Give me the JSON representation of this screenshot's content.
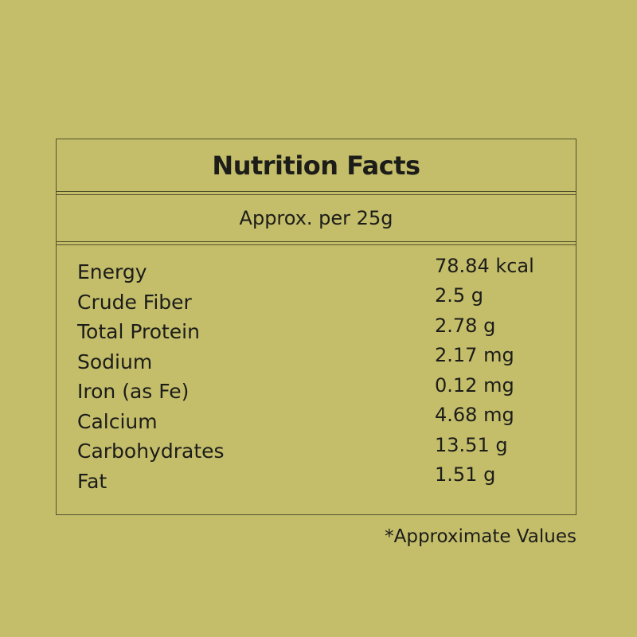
{
  "colors": {
    "bg": "#c4be6b",
    "line": "#52502a",
    "text": "#1c1c19"
  },
  "label": {
    "title": "Nutrition Facts",
    "serving": "Approx. per 25g",
    "footnote": "*Approximate Values",
    "table": {
      "rows": [
        {
          "label": "Energy",
          "value": "78.84 kcal"
        },
        {
          "label": "Crude Fiber",
          "value": "2.5 g"
        },
        {
          "label": "Total Protein",
          "value": "2.78 g"
        },
        {
          "label": "Sodium",
          "value": "2.17 mg"
        },
        {
          "label": "Iron (as Fe)",
          "value": "0.12 mg"
        },
        {
          "label": "Calcium",
          "value": "4.68 mg"
        },
        {
          "label": "Carbohydrates",
          "value": "13.51 g"
        },
        {
          "label": "Fat",
          "value": "1.51 g"
        }
      ]
    }
  }
}
